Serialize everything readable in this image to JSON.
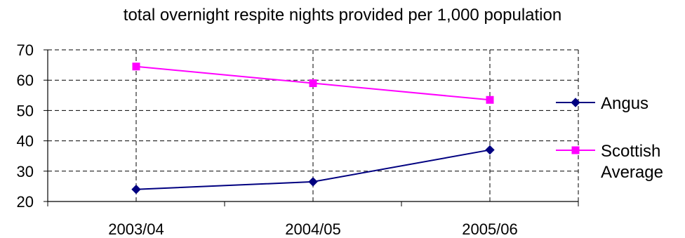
{
  "chart_data": {
    "type": "line",
    "title": "total overnight respite nights provided per 1,000 population",
    "xlabel": "",
    "ylabel": "",
    "categories": [
      "2003/04",
      "2004/05",
      "2005/06"
    ],
    "ylim": [
      20,
      70
    ],
    "yticks": [
      20,
      30,
      40,
      50,
      60,
      70
    ],
    "grid": true,
    "legend_position": "right",
    "series": [
      {
        "name": "Angus",
        "values": [
          24,
          26.5,
          37
        ],
        "color": "#000080",
        "marker": "diamond"
      },
      {
        "name": "Scottish Average",
        "values": [
          64.5,
          59,
          53.5
        ],
        "color": "#FF00FF",
        "marker": "square"
      }
    ]
  }
}
